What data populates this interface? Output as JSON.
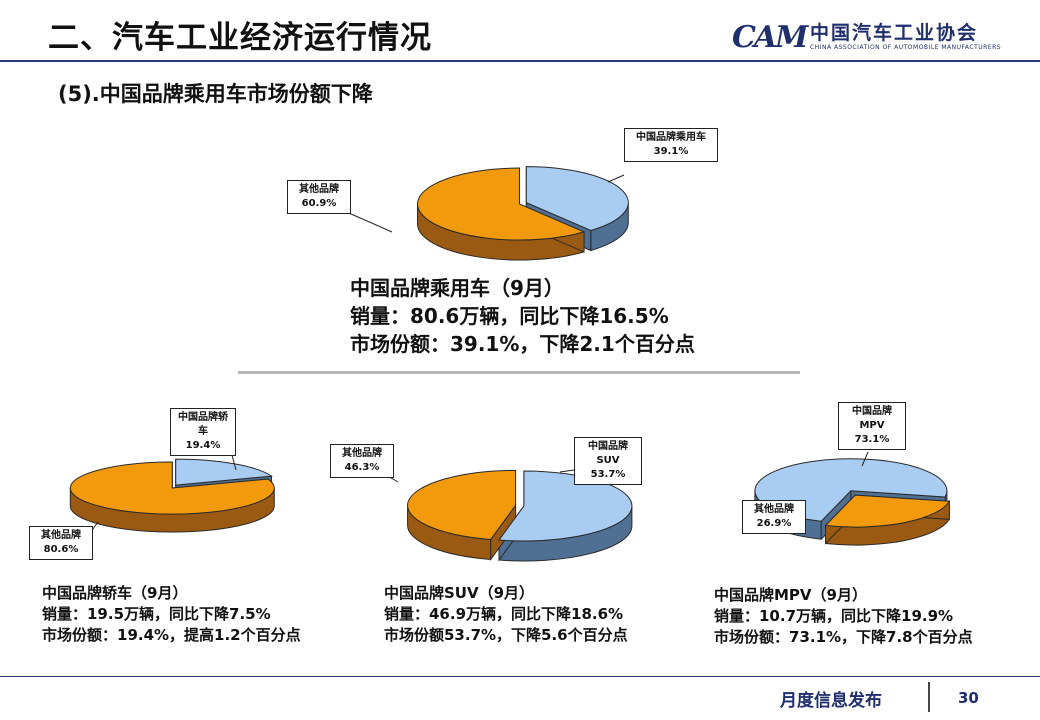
{
  "header": {
    "title": "二、汽车工业经济运行情况",
    "subtitle": "(5).中国品牌乘用车市场份额下降",
    "logo_cn": "中国汽车工业协会",
    "logo_en": "CHINA ASSOCIATION OF AUTOMOBILE MANUFACTURERS",
    "logo_mark": "CAM"
  },
  "colors": {
    "blue": "#a9ccf2",
    "blue_dark": "#4f6f93",
    "orange": "#f39a0c",
    "orange_dark": "#9a5a12"
  },
  "chart_data": [
    {
      "type": "pie",
      "title": "",
      "slices": [
        {
          "label": "中国品牌乘用车",
          "value": 39.1,
          "display": "39.1%"
        },
        {
          "label": "其他品牌",
          "value": 60.9,
          "display": "60.9%"
        }
      ],
      "summary": [
        "中国品牌乘用车（9月）",
        "销量：80.6万辆，同比下降16.5%",
        "市场份额：39.1%，下降2.1个百分点"
      ]
    },
    {
      "type": "pie",
      "title": "",
      "slices": [
        {
          "label": "中国品牌轿车",
          "value": 19.4,
          "display": "19.4%"
        },
        {
          "label": "其他品牌",
          "value": 80.6,
          "display": "80.6%"
        }
      ],
      "summary": [
        "中国品牌轿车（9月）",
        "销量：19.5万辆，同比下降7.5%",
        "市场份额：19.4%，提高1.2个百分点"
      ]
    },
    {
      "type": "pie",
      "title": "",
      "slices": [
        {
          "label": "中国品牌SUV",
          "value": 53.7,
          "display": "53.7%"
        },
        {
          "label": "其他品牌",
          "value": 46.3,
          "display": "46.3%"
        }
      ],
      "summary": [
        "中国品牌SUV（9月）",
        "销量：46.9万辆，同比下降18.6%",
        "市场份额53.7%，下降5.6个百分点"
      ]
    },
    {
      "type": "pie",
      "title": "",
      "slices": [
        {
          "label": "中国品牌MPV",
          "value": 73.1,
          "display": "73.1%"
        },
        {
          "label": "其他品牌",
          "value": 26.9,
          "display": "26.9%"
        }
      ],
      "summary": [
        "中国品牌MPV（9月）",
        "销量：10.7万辆，同比下降19.9%",
        "市场份额：73.1%，下降7.8个百分点"
      ]
    }
  ],
  "footer": {
    "text": "月度信息发布",
    "page": "30"
  }
}
